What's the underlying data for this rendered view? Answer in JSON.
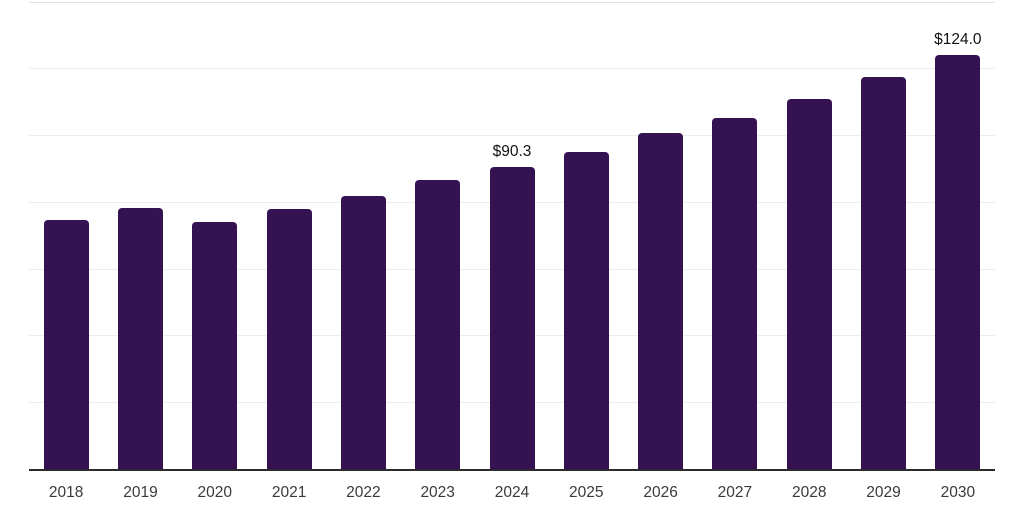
{
  "chart_data": {
    "type": "bar",
    "title": "",
    "xlabel": "",
    "ylabel": "",
    "categories": [
      "2018",
      "2019",
      "2020",
      "2021",
      "2022",
      "2023",
      "2024",
      "2025",
      "2026",
      "2027",
      "2028",
      "2029",
      "2030"
    ],
    "values": [
      74.7,
      78.2,
      74.1,
      77.8,
      81.8,
      86.4,
      90.3,
      95.0,
      100.6,
      105.2,
      110.9,
      117.5,
      124.0
    ],
    "data_labels": {
      "2024": "$90.3",
      "2030": "$124.0"
    },
    "ylim": [
      0,
      140
    ],
    "gridline_step": 20,
    "grid": true,
    "legend": false,
    "y_axis_labels_visible": false,
    "colors": {
      "bar": "#351352",
      "axis_line": "#2b2b2b",
      "gridline": "#ececec",
      "top_gridline": "#e2e2e2",
      "value_label": "#111111",
      "tick_label": "#3a3a3a",
      "background": "#ffffff"
    }
  }
}
